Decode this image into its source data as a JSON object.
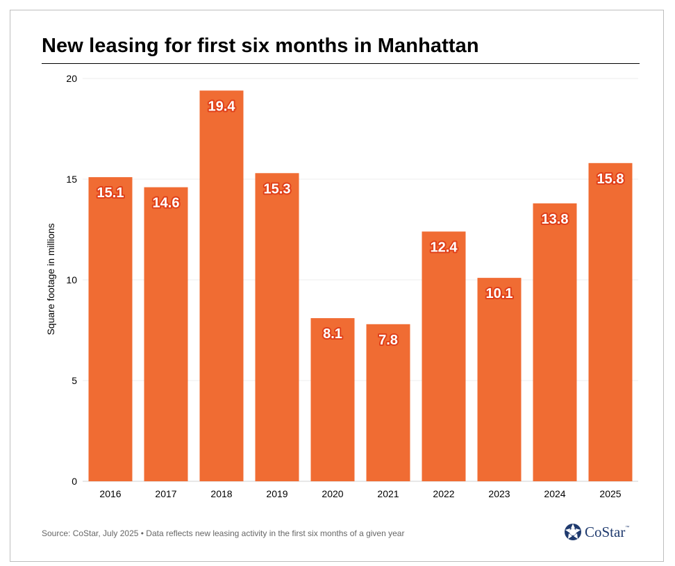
{
  "title": "New leasing for first six months in Manhattan",
  "footer": "Source: CoStar, July 2025 • Data reflects new leasing activity in the first six months of a given year",
  "logo": {
    "text": "CoStar",
    "tm": "™",
    "icon": "costar-star-icon",
    "color": "#1f3a6e"
  },
  "chart_data": {
    "type": "bar",
    "title": "New leasing for first six months in Manhattan",
    "xlabel": "",
    "ylabel": "Square footage in millions",
    "categories": [
      "2016",
      "2017",
      "2018",
      "2019",
      "2020",
      "2021",
      "2022",
      "2023",
      "2024",
      "2025"
    ],
    "values": [
      15.1,
      14.6,
      19.4,
      15.3,
      8.1,
      7.8,
      12.4,
      10.1,
      13.8,
      15.8
    ],
    "value_labels": [
      "15.1",
      "14.6",
      "19.4",
      "15.3",
      "8.1",
      "7.8",
      "12.4",
      "10.1",
      "13.8",
      "15.8"
    ],
    "yticks": [
      0,
      5,
      10,
      15,
      20
    ],
    "ytick_labels": [
      "0",
      "5",
      "10",
      "15",
      "20"
    ],
    "ylim": [
      0,
      20
    ],
    "grid": true,
    "legend": "none",
    "bar_color": "#f06c33",
    "label_outline_color": "#e0401a"
  }
}
